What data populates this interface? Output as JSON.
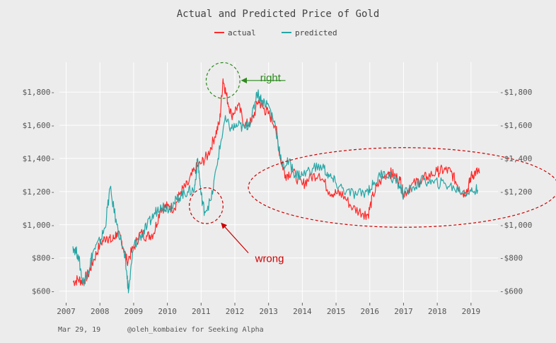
{
  "chart_data": {
    "type": "line",
    "title": "Actual and Predicted Price of Gold",
    "xlabel": "",
    "ylabel": "",
    "xlim": [
      2006.8,
      2019.8
    ],
    "ylim": [
      530,
      1980
    ],
    "x_ticks": [
      "2007",
      "2008",
      "2009",
      "2010",
      "2011",
      "2012",
      "2013",
      "2014",
      "2015",
      "2016",
      "2017",
      "2018",
      "2019"
    ],
    "y_ticks_left": [
      "$600",
      "$800",
      "$1,000",
      "$1,200",
      "$1,400",
      "$1,600",
      "$1,800"
    ],
    "y_ticks_right": [
      "$600",
      "$800",
      "$1,000",
      "$1,200",
      "$1,400",
      "$1,600",
      "$1,800"
    ],
    "y_tick_values": [
      600,
      800,
      1000,
      1200,
      1400,
      1600,
      1800
    ],
    "grid": true,
    "legend_position": "top-center",
    "series": [
      {
        "name": "actual",
        "color": "#ff2a2a",
        "x": [
          2007.2,
          2007.35,
          2007.5,
          2007.65,
          2007.8,
          2008.0,
          2008.2,
          2008.35,
          2008.5,
          2008.65,
          2008.8,
          2009.0,
          2009.2,
          2009.4,
          2009.6,
          2009.8,
          2010.0,
          2010.2,
          2010.4,
          2010.6,
          2010.8,
          2011.0,
          2011.2,
          2011.4,
          2011.55,
          2011.65,
          2011.75,
          2011.9,
          2012.1,
          2012.3,
          2012.5,
          2012.7,
          2012.85,
          2013.0,
          2013.2,
          2013.35,
          2013.5,
          2013.7,
          2014.0,
          2014.2,
          2014.5,
          2014.8,
          2015.0,
          2015.2,
          2015.5,
          2015.8,
          2015.95,
          2016.1,
          2016.3,
          2016.55,
          2016.7,
          2016.9,
          2017.0,
          2017.2,
          2017.5,
          2017.7,
          2018.0,
          2018.2,
          2018.4,
          2018.6,
          2018.75,
          2018.9,
          2019.0,
          2019.15,
          2019.25
        ],
        "y": [
          655,
          670,
          660,
          700,
          780,
          880,
          930,
          900,
          950,
          900,
          780,
          860,
          950,
          930,
          950,
          1100,
          1110,
          1100,
          1200,
          1240,
          1330,
          1370,
          1420,
          1530,
          1620,
          1880,
          1780,
          1660,
          1720,
          1600,
          1620,
          1750,
          1700,
          1670,
          1600,
          1400,
          1300,
          1320,
          1240,
          1280,
          1310,
          1200,
          1190,
          1180,
          1100,
          1070,
          1060,
          1180,
          1260,
          1320,
          1300,
          1270,
          1180,
          1230,
          1270,
          1290,
          1320,
          1330,
          1320,
          1240,
          1190,
          1210,
          1290,
          1320,
          1310
        ]
      },
      {
        "name": "predicted",
        "color": "#26a6a6",
        "x": [
          2007.2,
          2007.35,
          2007.5,
          2007.65,
          2007.8,
          2008.0,
          2008.15,
          2008.3,
          2008.5,
          2008.7,
          2008.8,
          2008.85,
          2009.0,
          2009.2,
          2009.4,
          2009.6,
          2009.8,
          2010.0,
          2010.2,
          2010.4,
          2010.6,
          2010.8,
          2010.9,
          2011.0,
          2011.1,
          2011.3,
          2011.5,
          2011.7,
          2011.9,
          2012.1,
          2012.3,
          2012.5,
          2012.65,
          2012.8,
          2013.0,
          2013.2,
          2013.4,
          2013.6,
          2013.8,
          2014.0,
          2014.3,
          2014.6,
          2014.8,
          2015.0,
          2015.3,
          2015.6,
          2015.9,
          2016.1,
          2016.4,
          2016.7,
          2016.9,
          2017.0,
          2017.3,
          2017.6,
          2017.9,
          2018.2,
          2018.5,
          2018.8,
          2019.0,
          2019.2
        ],
        "y": [
          870,
          820,
          650,
          720,
          840,
          900,
          980,
          1220,
          1000,
          850,
          700,
          600,
          870,
          930,
          990,
          1060,
          1120,
          1100,
          1130,
          1180,
          1200,
          1210,
          1400,
          1180,
          1080,
          1150,
          1400,
          1630,
          1580,
          1600,
          1580,
          1640,
          1800,
          1750,
          1720,
          1600,
          1350,
          1380,
          1300,
          1300,
          1340,
          1350,
          1290,
          1250,
          1200,
          1180,
          1200,
          1240,
          1320,
          1280,
          1230,
          1180,
          1230,
          1270,
          1250,
          1250,
          1220,
          1200,
          1200,
          1210
        ]
      }
    ],
    "annotations": [
      {
        "text": "right",
        "color": "#2d8a1e",
        "x": 2012.75,
        "y": 1865,
        "circle_cx": 2011.65,
        "circle_cy": 1870,
        "circle_rx": 0.5,
        "circle_ry": 108,
        "circle_color": "#2d8a1e",
        "arrow_from": [
          2013.5,
          1870
        ],
        "arrow_to": [
          2012.2,
          1870
        ]
      },
      {
        "text": "wrong",
        "color": "#cc0000",
        "x": 2012.6,
        "y": 775,
        "circle_cx": 2011.15,
        "circle_cy": 1115,
        "circle_rx": 0.5,
        "circle_ry": 108,
        "circle_color": "#cc0000",
        "arrow_from": [
          2012.4,
          830
        ],
        "arrow_to": [
          2011.6,
          1010
        ]
      },
      {
        "text": "",
        "circle_cx": 2017.0,
        "circle_cy": 1225,
        "circle_rx": 4.6,
        "circle_ry": 240,
        "circle_color": "#cc0000"
      }
    ],
    "footer_date": "Mar 29, 19",
    "footer_credit": "@oleh_kombaiev for Seeking Alpha"
  }
}
